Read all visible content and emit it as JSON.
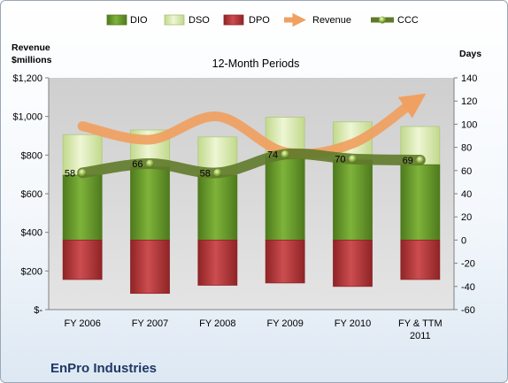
{
  "company": "EnPro Industries",
  "chart_data": {
    "type": "bar",
    "subtitle": "12-Month Periods",
    "categories": [
      "FY 2006",
      "FY 2007",
      "FY 2008",
      "FY 2009",
      "FY 2010",
      "FY & TTM 2011"
    ],
    "left_axis": {
      "title_line1": "Revenue",
      "title_line2": "$millions",
      "range": [
        0,
        1200
      ],
      "ticks": [
        0,
        200,
        400,
        600,
        800,
        1000,
        1200
      ],
      "tick_labels": [
        "$-",
        "$200",
        "$400",
        "$600",
        "$800",
        "$1,000",
        "$1,200"
      ]
    },
    "right_axis": {
      "title": "Days",
      "range": [
        -60,
        140
      ],
      "ticks": [
        -60,
        -40,
        -20,
        0,
        20,
        40,
        60,
        80,
        100,
        120,
        140
      ],
      "tick_labels": [
        "-60",
        "-40",
        "-20",
        "0",
        "20",
        "40",
        "60",
        "80",
        "100",
        "120",
        "140"
      ]
    },
    "series": [
      {
        "name": "DIO",
        "axis": "right",
        "kind": "stacked-bar",
        "values": [
          56,
          63,
          56,
          72,
          69,
          65
        ]
      },
      {
        "name": "DSO",
        "axis": "right",
        "kind": "stacked-bar",
        "values": [
          35,
          32,
          33,
          34,
          33,
          33
        ]
      },
      {
        "name": "DPO",
        "axis": "right",
        "kind": "negative-bar",
        "values": [
          -34,
          -46,
          -39,
          -37,
          -40,
          -34
        ]
      },
      {
        "name": "Revenue",
        "axis": "left",
        "kind": "line",
        "values": [
          950,
          880,
          1000,
          815,
          860,
          1095
        ]
      },
      {
        "name": "CCC",
        "axis": "right",
        "kind": "line",
        "values": [
          58,
          66,
          58,
          74,
          70,
          69
        ]
      }
    ],
    "ccc_labels": [
      "58",
      "66",
      "58",
      "74",
      "70",
      "69"
    ],
    "legend": [
      "DIO",
      "DSO",
      "DPO",
      "Revenue",
      "CCC"
    ],
    "legend_position": "top",
    "grid": false
  },
  "colors": {
    "dio": "#6a9a2c",
    "dso": "#d6e8a8",
    "dpo": "#b83c3e",
    "revenue": "#f0a060",
    "ccc": "#5f7a2a",
    "plot_bg": "#d9d9d9",
    "company": "#1f3864"
  }
}
